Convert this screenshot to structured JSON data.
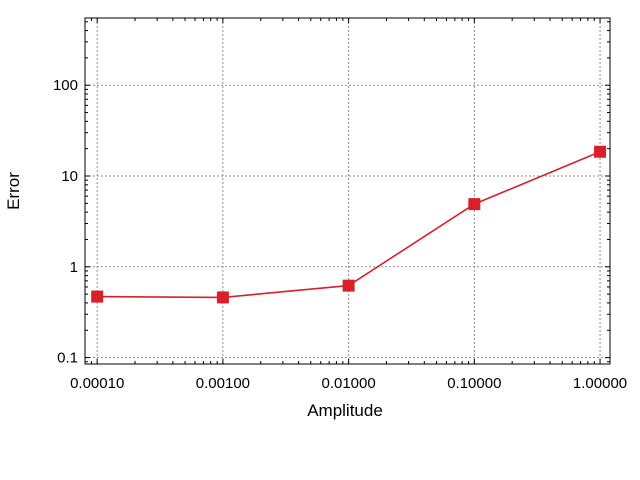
{
  "chart_data": {
    "type": "line",
    "title": "",
    "xlabel": "Amplitude",
    "ylabel": "Error",
    "x_scale": "log",
    "y_scale": "log",
    "xlim": [
      8e-05,
      1.2
    ],
    "ylim": [
      0.085,
      550
    ],
    "grid": true,
    "x_ticks": [
      0.0001,
      0.001,
      0.01,
      0.1,
      1.0
    ],
    "x_tick_labels": [
      "0.00010",
      "0.00100",
      "0.01000",
      "0.10000",
      "1.00000"
    ],
    "y_ticks": [
      0.1,
      1,
      10,
      100
    ],
    "y_tick_labels": [
      "0.1",
      "1",
      "10",
      "100"
    ],
    "series": [
      {
        "color": "#d9202a",
        "marker": "square",
        "x": [
          0.0001,
          0.001,
          0.01,
          0.1,
          1.0
        ],
        "y": [
          0.47,
          0.46,
          0.62,
          4.9,
          18.5
        ]
      }
    ]
  }
}
